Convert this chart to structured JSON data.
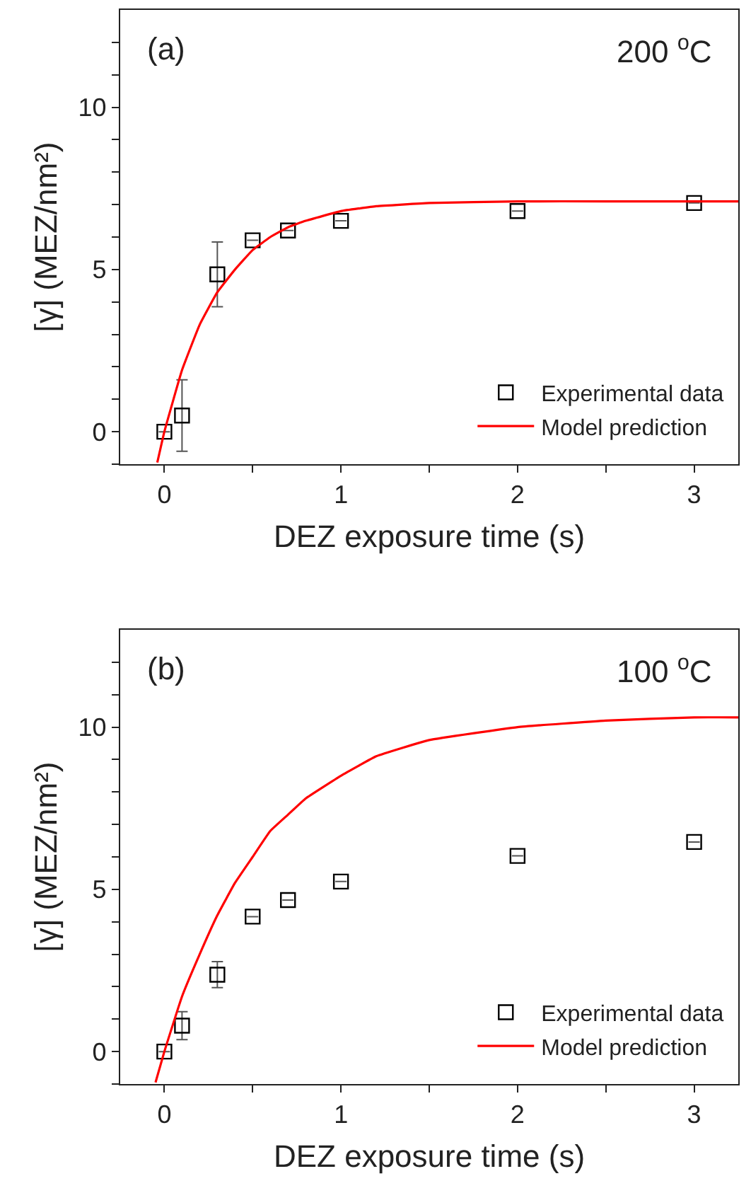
{
  "chart_data": [
    {
      "type": "scatter",
      "xlabel": "DEZ exposure time (s)",
      "ylabel": "[γ] (MEZ/nm²)",
      "annotations": [
        "(a)",
        "200 $^{o}$C"
      ],
      "xlim": [
        -0.25,
        3.25
      ],
      "ylim": [
        -1,
        13
      ],
      "xticks": [
        0,
        {
          "value": 0.5,
          "label": null
        },
        1,
        {
          "value": 1.5,
          "label": null
        },
        2,
        {
          "value": 2.5,
          "label": null
        },
        3
      ],
      "yticks": [
        {
          "value": -1,
          "label": null
        },
        0,
        {
          "value": 1,
          "label": null
        },
        {
          "value": 2,
          "label": null
        },
        {
          "value": 3,
          "label": null
        },
        {
          "value": 4,
          "label": null
        },
        5,
        {
          "value": 6,
          "label": null
        },
        {
          "value": 7,
          "label": null
        },
        {
          "value": 8,
          "label": null
        },
        {
          "value": 9,
          "label": null
        },
        10,
        {
          "value": 11,
          "label": null
        },
        {
          "value": 12,
          "label": null
        }
      ],
      "grid": false,
      "legend": "bottom right",
      "series": [
        {
          "name": "Experimental data",
          "marker": "square",
          "color": "#000000",
          "x": [
            0,
            0.1,
            0.3,
            0.5,
            0.7,
            1,
            2,
            3
          ],
          "values": [
            0,
            0.5,
            4.85,
            5.9,
            6.2,
            6.5,
            6.8,
            7.05
          ],
          "errors": [
            null,
            1.1,
            1.0,
            null,
            null,
            null,
            null,
            null
          ]
        },
        {
          "name": "Model prediction",
          "type": "line",
          "marker": "none",
          "line_style": "solid",
          "color": "#ff0000",
          "x": [
            -0.04,
            0,
            0.1,
            0.2,
            0.3,
            0.4,
            0.5,
            0.6,
            0.7,
            0.8,
            1.0,
            1.2,
            1.5,
            2,
            2.5,
            3,
            3.25
          ],
          "values": [
            -0.95,
            0,
            1.9,
            3.3,
            4.3,
            5.0,
            5.6,
            6.0,
            6.3,
            6.5,
            6.8,
            6.95,
            7.05,
            7.1,
            7.1,
            7.1,
            7.1
          ]
        }
      ]
    },
    {
      "type": "scatter",
      "xlabel": "DEZ exposure time (s)",
      "ylabel": "[γ] (MEZ/nm²)",
      "annotations": [
        "(b)",
        "100 $^{o}$C"
      ],
      "xlim": [
        -0.25,
        3.25
      ],
      "ylim": [
        -1,
        13
      ],
      "xticks": [
        0,
        {
          "value": 0.5,
          "label": null
        },
        1,
        {
          "value": 1.5,
          "label": null
        },
        2,
        {
          "value": 2.5,
          "label": null
        },
        3
      ],
      "yticks": [
        {
          "value": -1,
          "label": null
        },
        0,
        {
          "value": 1,
          "label": null
        },
        {
          "value": 2,
          "label": null
        },
        {
          "value": 3,
          "label": null
        },
        {
          "value": 4,
          "label": null
        },
        5,
        {
          "value": 6,
          "label": null
        },
        {
          "value": 7,
          "label": null
        },
        {
          "value": 8,
          "label": null
        },
        {
          "value": 9,
          "label": null
        },
        10,
        {
          "value": 11,
          "label": null
        },
        {
          "value": 12,
          "label": null
        }
      ],
      "grid": false,
      "legend": "bottom right",
      "series": [
        {
          "name": "Experimental data",
          "marker": "square",
          "color": "#000000",
          "x": [
            0,
            0.1,
            0.3,
            0.5,
            0.7,
            1,
            2,
            3
          ],
          "values": [
            0,
            0.8,
            2.37,
            4.16,
            4.67,
            5.24,
            6.03,
            6.46
          ],
          "errors": [
            null,
            0.43,
            0.4,
            null,
            null,
            null,
            null,
            null
          ]
        },
        {
          "name": "Model prediction",
          "type": "line",
          "marker": "none",
          "line_style": "solid",
          "color": "#ff0000",
          "x": [
            -0.05,
            0,
            0.1,
            0.2,
            0.3,
            0.4,
            0.5,
            0.6,
            0.7,
            0.8,
            1.0,
            1.2,
            1.5,
            2,
            2.5,
            3,
            3.25
          ],
          "values": [
            -0.95,
            0,
            1.7,
            3.0,
            4.2,
            5.2,
            6.0,
            6.8,
            7.3,
            7.8,
            8.5,
            9.1,
            9.6,
            10.0,
            10.2,
            10.3,
            10.3
          ]
        }
      ]
    }
  ]
}
